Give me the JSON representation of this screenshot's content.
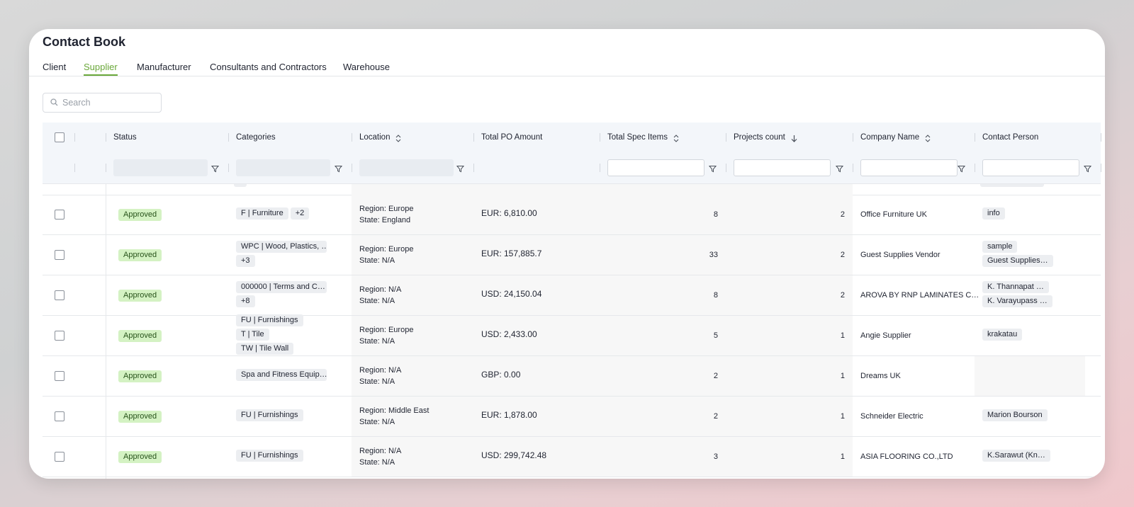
{
  "header": {
    "title": "Contact Book"
  },
  "tabs": {
    "items": [
      "Client",
      "Supplier",
      "Manufacturer",
      "Consultants and Contractors",
      "Warehouse"
    ],
    "active": 1
  },
  "search": {
    "placeholder": "Search"
  },
  "table": {
    "columns": [
      "Status",
      "Categories",
      "Location",
      "Total PO Amount",
      "Total Spec Items",
      "Projects count",
      "Company Name",
      "Contact Person"
    ],
    "rows": [
      {
        "status": "Approved",
        "categories": [
          "F | Furniture",
          "+2"
        ],
        "location": [
          "Region: Europe",
          "State: England"
        ],
        "total_po": "EUR: 6,810.00",
        "spec_items": 8,
        "projects": 2,
        "company": "Office Furniture UK",
        "contacts": [
          "info"
        ]
      },
      {
        "status": "Approved",
        "categories": [
          "WPC | Wood, Plastics, …",
          "+3"
        ],
        "location": [
          "Region: Europe",
          "State: N/A"
        ],
        "total_po": "EUR: 157,885.7",
        "spec_items": 33,
        "projects": 2,
        "company": "Guest Supplies Vendor",
        "contacts": [
          "sample",
          "Guest Supplies…"
        ]
      },
      {
        "status": "Approved",
        "categories": [
          "000000 | Terms and C…",
          "+8"
        ],
        "location": [
          "Region: N/A",
          "State: N/A"
        ],
        "total_po": "USD: 24,150.04",
        "spec_items": 8,
        "projects": 2,
        "company": "AROVA BY RNP LAMINATES C…",
        "contacts": [
          "K. Thannapat …",
          "K. Varayupass …"
        ]
      },
      {
        "status": "Approved",
        "categories": [
          "FU | Furnishings",
          "T | Tile",
          "TW | Tile Wall"
        ],
        "location": [
          "Region: Europe",
          "State: N/A"
        ],
        "total_po": "USD: 2,433.00",
        "spec_items": 5,
        "projects": 1,
        "company": "Angie Supplier",
        "contacts": [
          "krakatau"
        ]
      },
      {
        "status": "Approved",
        "categories": [
          "Spa and Fitness Equip…"
        ],
        "location": [
          "Region: N/A",
          "State: N/A"
        ],
        "total_po": "GBP: 0.00",
        "spec_items": 2,
        "projects": 1,
        "company": "Dreams UK",
        "contacts": []
      },
      {
        "status": "Approved",
        "categories": [
          "FU | Furnishings"
        ],
        "location": [
          "Region: Middle East",
          "State: N/A"
        ],
        "total_po": "EUR: 1,878.00",
        "spec_items": 2,
        "projects": 1,
        "company": "Schneider Electric",
        "contacts": [
          "Marion Bourson"
        ]
      },
      {
        "status": "Approved",
        "categories": [
          "FU | Furnishings"
        ],
        "location": [
          "Region: N/A",
          "State: N/A"
        ],
        "total_po": "USD: 299,742.48",
        "spec_items": 3,
        "projects": 1,
        "company": "ASIA FLOORING CO.,LTD",
        "contacts": [
          "K.Sarawut (Kn…"
        ]
      }
    ]
  }
}
